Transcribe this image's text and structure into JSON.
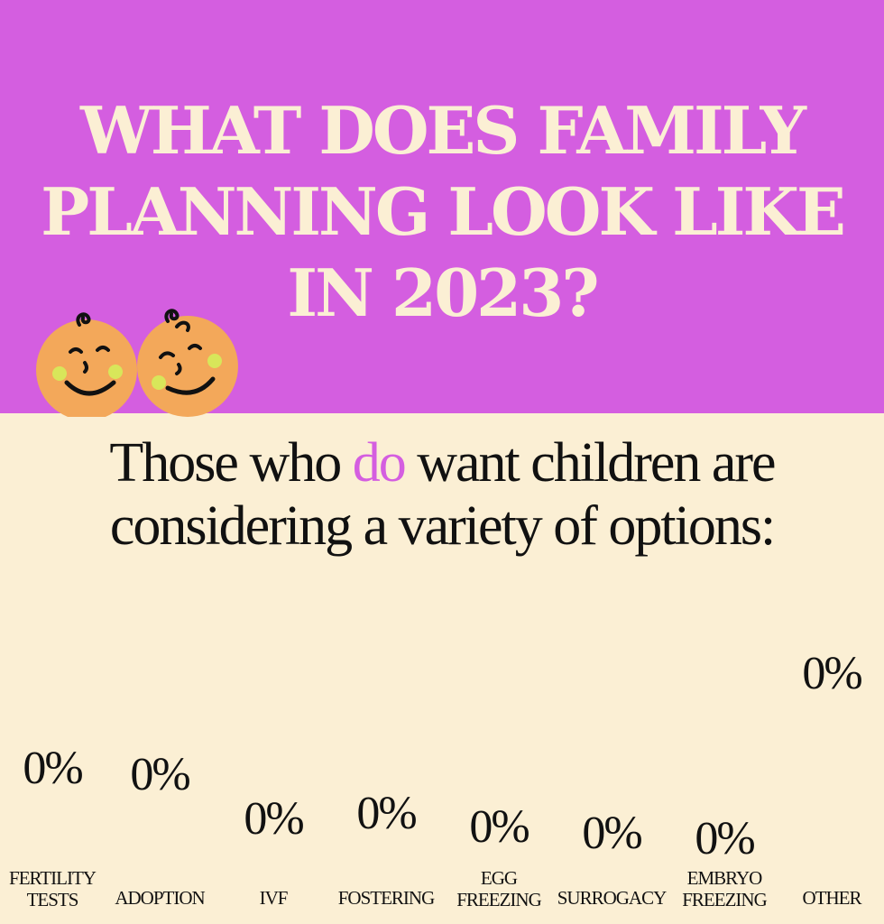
{
  "header": {
    "lines": [
      "WHAT DOES FAMILY",
      "PLANNING LOOK LIKE",
      "IN 2023?"
    ]
  },
  "subtitle": {
    "line1_before": "Those who ",
    "line1_highlight": "do",
    "line1_after": " want children are",
    "line2": "considering a variety of options:"
  },
  "icons": [
    "baby-face-icon",
    "baby-face-icon"
  ],
  "colors": {
    "header_bg": "#d45ee0",
    "body_bg": "#fbefd4",
    "accent": "#d45ee0",
    "baby_face": "#f3a85a",
    "baby_cheek": "#d8e65a"
  },
  "chart_data": {
    "type": "bar",
    "categories": [
      [
        "FERTILITY",
        "TESTS"
      ],
      [
        "ADOPTION"
      ],
      [
        "IVF"
      ],
      [
        "FOSTERING"
      ],
      [
        "EGG",
        "FREEZING"
      ],
      [
        "SURROGACY"
      ],
      [
        "EMBRYO",
        "FREEZING"
      ],
      [
        "OTHER"
      ]
    ],
    "values": [
      0,
      0,
      0,
      0,
      0,
      0,
      0,
      0
    ],
    "value_labels": [
      "0%",
      "0%",
      "0%",
      "0%",
      "0%",
      "0%",
      "0%",
      "0%"
    ],
    "ylim": [
      0,
      100
    ],
    "grid": false,
    "legend": "none"
  }
}
